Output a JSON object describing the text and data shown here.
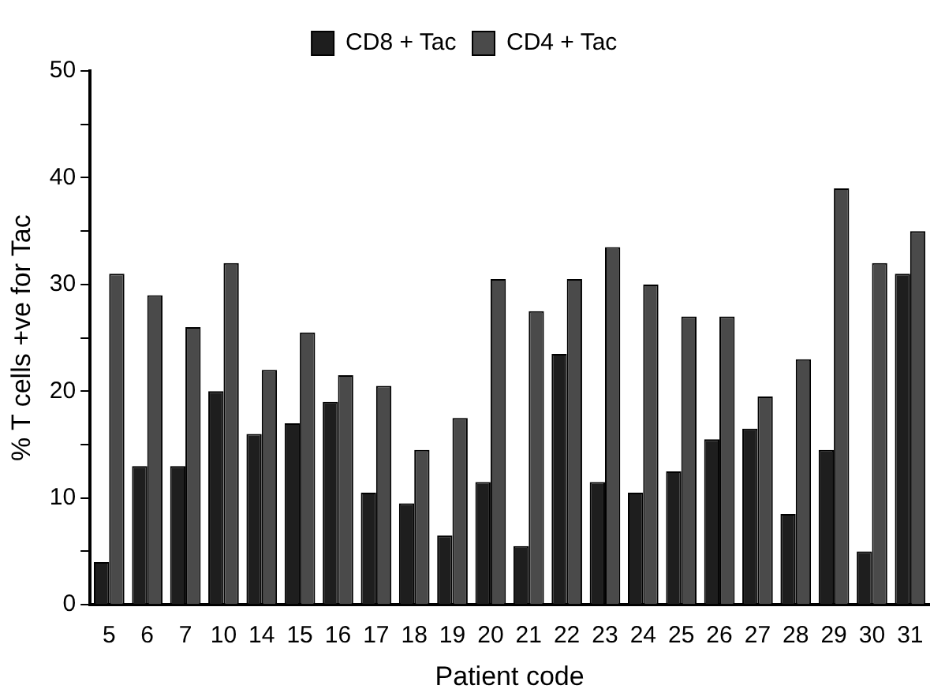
{
  "chart_data": {
    "type": "bar",
    "xlabel": "Patient code",
    "ylabel": "% T cells +ve for Tac",
    "categories": [
      "5",
      "6",
      "7",
      "10",
      "14",
      "15",
      "16",
      "17",
      "18",
      "19",
      "20",
      "21",
      "22",
      "23",
      "24",
      "25",
      "26",
      "27",
      "28",
      "29",
      "30",
      "31"
    ],
    "series": [
      {
        "name": "CD8 + Tac",
        "color": "#1e1e1e",
        "values": [
          4,
          13,
          13,
          20,
          16,
          17,
          19,
          10.5,
          9.5,
          6.5,
          11.5,
          5.5,
          23.5,
          11.5,
          10.5,
          12.5,
          15.5,
          16.5,
          8.5,
          14.5,
          5,
          31
        ]
      },
      {
        "name": "CD4 + Tac",
        "color": "#4a4a4a",
        "values": [
          31,
          29,
          26,
          32,
          22,
          25.5,
          21.5,
          20.5,
          14.5,
          17.5,
          30.5,
          27.5,
          30.5,
          33.5,
          30,
          27,
          27,
          19.5,
          23,
          39,
          32,
          35
        ]
      }
    ],
    "ylim": [
      0,
      50
    ],
    "yticks": [
      0,
      {
        "value": 5,
        "label": null
      },
      10,
      {
        "value": 15,
        "label": null
      },
      20,
      {
        "value": 25,
        "label": null
      },
      30,
      {
        "value": 35,
        "label": null
      },
      40,
      {
        "value": 45,
        "label": null
      },
      50
    ],
    "grid": false,
    "legend": "top"
  }
}
